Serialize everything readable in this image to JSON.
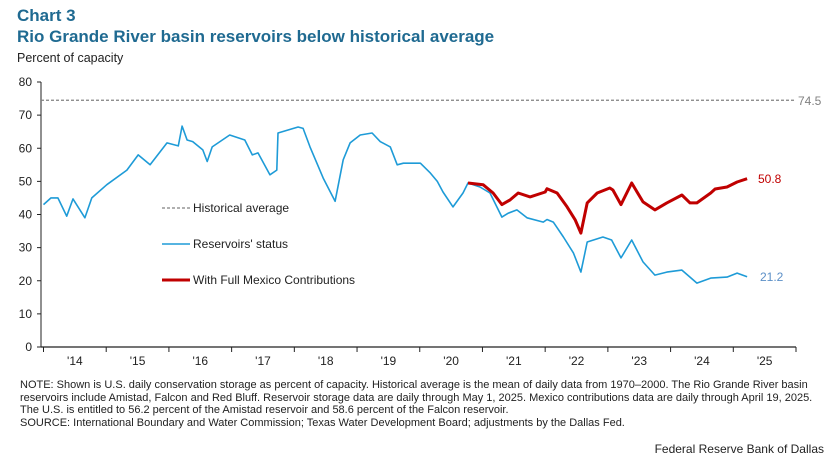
{
  "header": {
    "chart_number": "Chart 3",
    "title": "Rio Grande River basin reservoirs below historical average",
    "ylabel": "Percent of capacity"
  },
  "footer": {
    "note": "NOTE: Shown is U.S. daily conservation storage as percent of capacity. Historical average is the mean of daily data from 1970–2000. The Rio Grande River basin reservoirs include Amistad, Falcon and Red Bluff. Reservoir storage data are daily through May 1, 2025. Mexico contributions data are daily through April 19, 2025. The U.S. is entitled to 56.2 percent of the Amistad reservoir and 58.6 percent of the Falcon reservoir.",
    "source": "SOURCE: International Boundary and Water Commission; Texas Water Development Board; adjustments by the Dallas Fed.",
    "credit": "Federal Reserve Bank of Dallas"
  },
  "colors": {
    "title": "#1f6a91",
    "reservoirs": "#1e9bd7",
    "mexico": "#c00000",
    "average": "#808080",
    "label_blue": "#5b8fc7"
  },
  "chart_data": {
    "type": "line",
    "title": "Rio Grande River basin reservoirs below historical average",
    "xlabel": "",
    "ylabel": "Percent of capacity",
    "xlim": [
      2014,
      2026
    ],
    "ylim": [
      0,
      80
    ],
    "yticks": [
      0,
      10,
      20,
      30,
      40,
      50,
      60,
      70,
      80
    ],
    "xtick_labels": [
      "'14",
      "'15",
      "'16",
      "'17",
      "'18",
      "'19",
      "'20",
      "'21",
      "'22",
      "'23",
      "'24",
      "'25"
    ],
    "grid": false,
    "legend_placement": "center-left",
    "reference_line": {
      "name": "Historical average",
      "value": 74.5,
      "label": "74.5"
    },
    "series": [
      {
        "name": "Reservoirs' status",
        "end_label": "21.2",
        "points": [
          [
            2014.0,
            43
          ],
          [
            2014.12,
            45
          ],
          [
            2014.23,
            45
          ],
          [
            2014.37,
            39.5
          ],
          [
            2014.47,
            44.7
          ],
          [
            2014.66,
            39
          ],
          [
            2014.77,
            45
          ],
          [
            2015.01,
            49
          ],
          [
            2015.33,
            53.4
          ],
          [
            2015.51,
            58
          ],
          [
            2015.7,
            55
          ],
          [
            2015.97,
            61.6
          ],
          [
            2016.15,
            60.7
          ],
          [
            2016.21,
            66.7
          ],
          [
            2016.29,
            62.5
          ],
          [
            2016.38,
            62
          ],
          [
            2016.54,
            59.5
          ],
          [
            2016.61,
            56
          ],
          [
            2016.69,
            60.4
          ],
          [
            2016.97,
            64
          ],
          [
            2017.21,
            62.5
          ],
          [
            2017.33,
            58
          ],
          [
            2017.42,
            58.6
          ],
          [
            2017.61,
            52
          ],
          [
            2017.72,
            53.4
          ],
          [
            2017.74,
            64.6
          ],
          [
            2018.06,
            66.4
          ],
          [
            2018.14,
            66
          ],
          [
            2018.25,
            60.4
          ],
          [
            2018.36,
            55.5
          ],
          [
            2018.46,
            51
          ],
          [
            2018.65,
            44
          ],
          [
            2018.78,
            56.5
          ],
          [
            2018.89,
            61.6
          ],
          [
            2019.05,
            64
          ],
          [
            2019.24,
            64.6
          ],
          [
            2019.37,
            62
          ],
          [
            2019.53,
            60.4
          ],
          [
            2019.64,
            55
          ],
          [
            2019.74,
            55.5
          ],
          [
            2020.01,
            55.5
          ],
          [
            2020.17,
            52.5
          ],
          [
            2020.28,
            50
          ],
          [
            2020.37,
            46.8
          ],
          [
            2020.53,
            42.3
          ],
          [
            2020.69,
            46.5
          ],
          [
            2020.77,
            49.5
          ],
          [
            2020.96,
            48.3
          ],
          [
            2021.12,
            46.5
          ],
          [
            2021.31,
            39.2
          ],
          [
            2021.41,
            40.4
          ],
          [
            2021.55,
            41.4
          ],
          [
            2021.71,
            39
          ],
          [
            2021.97,
            37.7
          ],
          [
            2022.03,
            38.5
          ],
          [
            2022.13,
            37.7
          ],
          [
            2022.29,
            33.2
          ],
          [
            2022.45,
            28.4
          ],
          [
            2022.57,
            22.6
          ],
          [
            2022.67,
            31.7
          ],
          [
            2022.92,
            33.2
          ],
          [
            2023.06,
            32.3
          ],
          [
            2023.21,
            26.9
          ],
          [
            2023.38,
            32.3
          ],
          [
            2023.56,
            25.7
          ],
          [
            2023.75,
            21.7
          ],
          [
            2023.94,
            22.6
          ],
          [
            2024.18,
            23.2
          ],
          [
            2024.31,
            21.1
          ],
          [
            2024.42,
            19.3
          ],
          [
            2024.64,
            20.8
          ],
          [
            2024.9,
            21.1
          ],
          [
            2025.06,
            22.3
          ],
          [
            2025.22,
            21.2
          ]
        ]
      },
      {
        "name": "With Full Mexico Contributions",
        "end_label": "50.8",
        "points": [
          [
            2020.77,
            49.5
          ],
          [
            2021.01,
            49
          ],
          [
            2021.17,
            46.5
          ],
          [
            2021.31,
            43
          ],
          [
            2021.44,
            44.4
          ],
          [
            2021.57,
            46.5
          ],
          [
            2021.76,
            45.3
          ],
          [
            2022.0,
            46.8
          ],
          [
            2022.03,
            47.8
          ],
          [
            2022.19,
            46.5
          ],
          [
            2022.35,
            42.3
          ],
          [
            2022.48,
            38.3
          ],
          [
            2022.57,
            34.4
          ],
          [
            2022.67,
            43.5
          ],
          [
            2022.83,
            46.5
          ],
          [
            2023.03,
            48
          ],
          [
            2023.08,
            47.4
          ],
          [
            2023.21,
            43
          ],
          [
            2023.38,
            49.5
          ],
          [
            2023.56,
            43.8
          ],
          [
            2023.75,
            41.4
          ],
          [
            2023.94,
            43.5
          ],
          [
            2024.18,
            45.9
          ],
          [
            2024.31,
            43.5
          ],
          [
            2024.42,
            43.5
          ],
          [
            2024.64,
            46.5
          ],
          [
            2024.71,
            47.7
          ],
          [
            2024.9,
            48.3
          ],
          [
            2025.06,
            49.8
          ],
          [
            2025.22,
            50.8
          ]
        ]
      }
    ]
  }
}
